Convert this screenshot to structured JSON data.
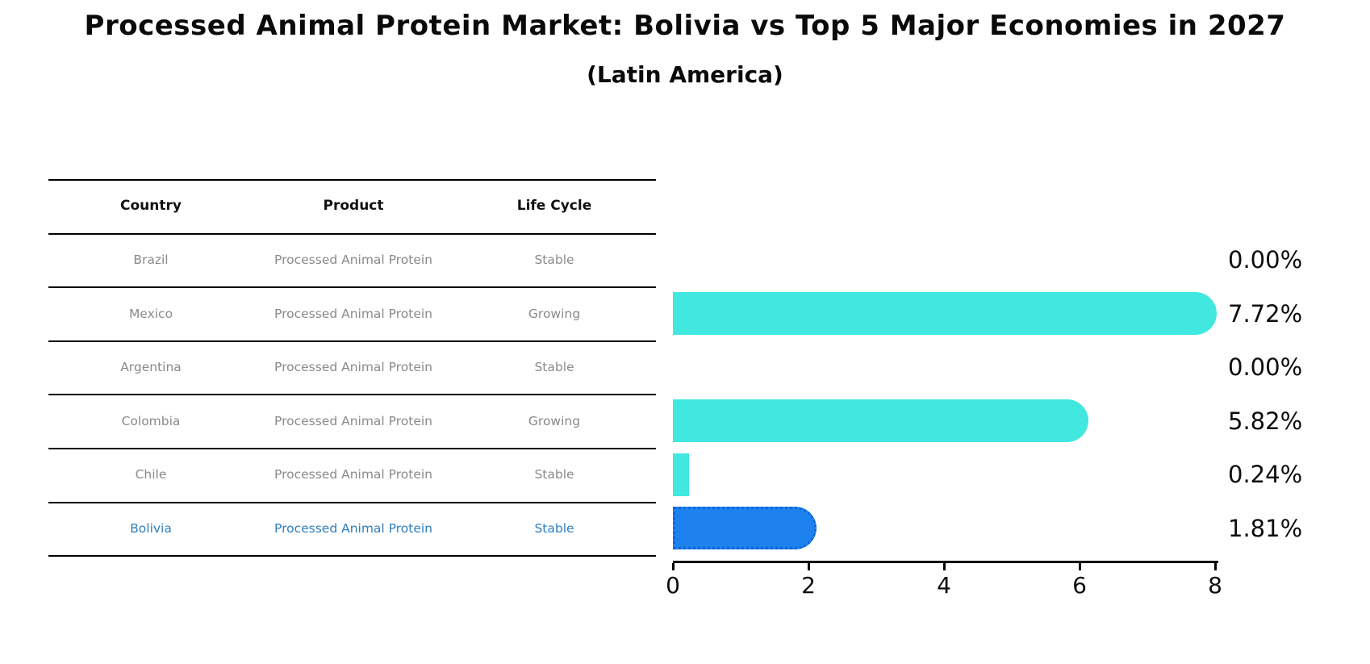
{
  "title": "Processed Animal Protein Market: Bolivia vs Top 5 Major Economies in 2027",
  "subtitle": "(Latin America)",
  "table": {
    "columns": [
      "Country",
      "Product",
      "Life Cycle"
    ],
    "rows": [
      {
        "country": "Brazil",
        "product": "Processed Animal Protein",
        "life_cycle": "Stable",
        "highlighted": false
      },
      {
        "country": "Mexico",
        "product": "Processed Animal Protein",
        "life_cycle": "Growing",
        "highlighted": false
      },
      {
        "country": "Argentina",
        "product": "Processed Animal Protein",
        "life_cycle": "Stable",
        "highlighted": false
      },
      {
        "country": "Colombia",
        "product": "Processed Animal Protein",
        "life_cycle": "Growing",
        "highlighted": false
      },
      {
        "country": "Chile",
        "product": "Processed Animal Protein",
        "life_cycle": "Stable",
        "highlighted": false
      },
      {
        "country": "Bolivia",
        "product": "Processed Animal Protein",
        "life_cycle": "Stable",
        "highlighted": true
      }
    ]
  },
  "chart_data": {
    "type": "bar",
    "orientation": "horizontal",
    "title": "Processed Animal Protein Market: Bolivia vs Top 5 Major Economies in 2027",
    "subtitle": "(Latin America)",
    "categories": [
      "Brazil",
      "Mexico",
      "Argentina",
      "Colombia",
      "Chile",
      "Bolivia"
    ],
    "values": [
      0.0,
      7.72,
      0.0,
      5.82,
      0.24,
      1.81
    ],
    "value_labels": [
      "0.00%",
      "7.72%",
      "0.00%",
      "5.82%",
      "0.24%",
      "1.81%"
    ],
    "xlim": [
      0,
      8
    ],
    "x_ticks": [
      0,
      2,
      4,
      6,
      8
    ],
    "x_tick_labels": [
      "0",
      "2",
      "4",
      "6",
      "8"
    ],
    "grid": false,
    "legend": false,
    "bar_color": "#40e8e0",
    "highlight_bar_color": "#1e82ee",
    "highlight_border_color": "#0b66dd",
    "highlight_index": 5
  },
  "colors": {
    "background": "#ffffff",
    "title_text": "#0a0a0a",
    "table_header_text": "#111111",
    "table_body_text": "#8a8a8a",
    "highlight_row_text": "#2e7fc0",
    "value_label_text": "#0d0d0d",
    "rule": "#000000"
  }
}
